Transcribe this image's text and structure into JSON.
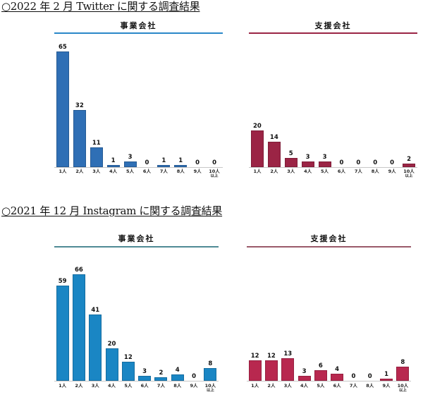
{
  "sections": [
    {
      "title": "○2022 年 2 月  Twitter に関する調査結果",
      "charts": [
        {
          "header": "事業会社",
          "color": "#2f6fb5",
          "rule_color": "#2a88c8"
        },
        {
          "header": "支援会社",
          "color": "#9b2445",
          "rule_color": "#9b2445"
        }
      ]
    },
    {
      "title": "○2021 年 12 月  Instagram に関する調査結果",
      "charts": [
        {
          "header": "事業会社",
          "color": "#1a86c4",
          "rule_color": "#4f8a95"
        },
        {
          "header": "支援会社",
          "color": "#b8284f",
          "rule_color": "#9a5a6a"
        }
      ]
    }
  ],
  "categories": [
    "1人",
    "2人",
    "3人",
    "4人",
    "5人",
    "6人",
    "7人",
    "8人",
    "9人",
    "10人\n以上"
  ],
  "chart_data": [
    {
      "type": "bar",
      "title": "○2022 年 2 月 Twitter に関する調査結果 — 事業会社",
      "categories": [
        "1人",
        "2人",
        "3人",
        "4人",
        "5人",
        "6人",
        "7人",
        "8人",
        "9人",
        "10人以上"
      ],
      "values": [
        65,
        32,
        11,
        1,
        3,
        0,
        1,
        1,
        0,
        0
      ],
      "xlabel": "",
      "ylabel": "",
      "grid": false,
      "color": "#2f6fb5"
    },
    {
      "type": "bar",
      "title": "○2022 年 2 月 Twitter に関する調査結果 — 支援会社",
      "categories": [
        "1人",
        "2人",
        "3人",
        "4人",
        "5人",
        "6人",
        "7人",
        "8人",
        "9人",
        "10人以上"
      ],
      "values": [
        20,
        14,
        5,
        3,
        3,
        0,
        0,
        0,
        0,
        2
      ],
      "xlabel": "",
      "ylabel": "",
      "grid": false,
      "color": "#9b2445"
    },
    {
      "type": "bar",
      "title": "○2021 年 12 月 Instagram に関する調査結果 — 事業会社",
      "categories": [
        "1人",
        "2人",
        "3人",
        "4人",
        "5人",
        "6人",
        "7人",
        "8人",
        "9人",
        "10人以上"
      ],
      "values": [
        59,
        66,
        41,
        20,
        12,
        3,
        2,
        4,
        0,
        8
      ],
      "xlabel": "",
      "ylabel": "",
      "grid": false,
      "color": "#1a86c4"
    },
    {
      "type": "bar",
      "title": "○2021 年 12 月 Instagram に関する調査結果 — 支援会社",
      "categories": [
        "1人",
        "2人",
        "3人",
        "4人",
        "5人",
        "6人",
        "7人",
        "8人",
        "9人",
        "10人以上"
      ],
      "values": [
        12,
        12,
        13,
        3,
        6,
        4,
        0,
        0,
        1,
        8
      ],
      "xlabel": "",
      "ylabel": "",
      "grid": false,
      "color": "#b8284f"
    }
  ]
}
